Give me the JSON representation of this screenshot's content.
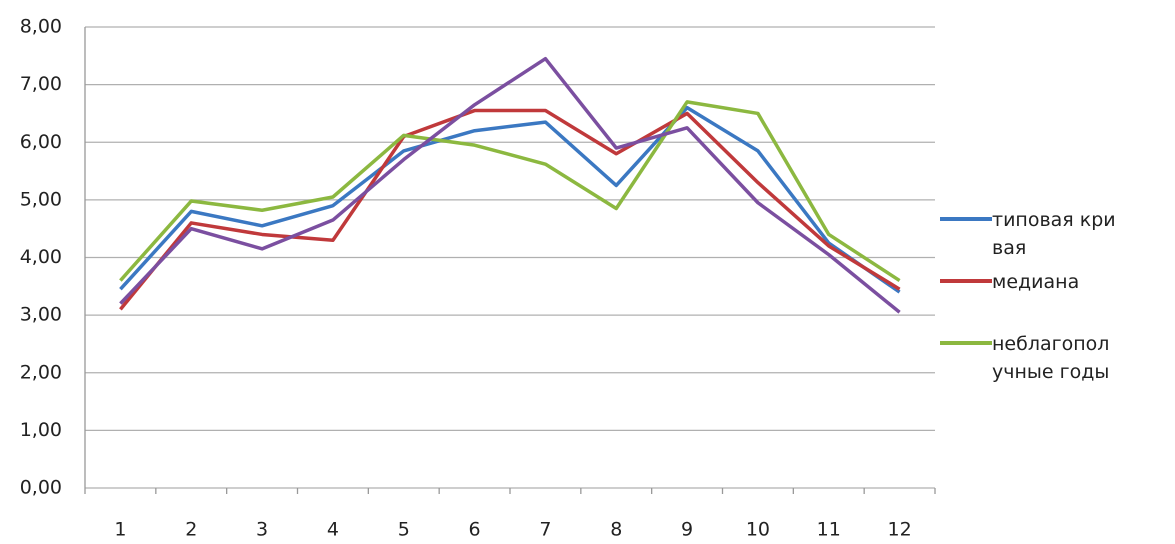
{
  "chart_data": {
    "type": "line",
    "categories": [
      "1",
      "2",
      "3",
      "4",
      "5",
      "6",
      "7",
      "8",
      "9",
      "10",
      "11",
      "12"
    ],
    "series": [
      {
        "name": "типовая кривая",
        "color": "#3b78c2",
        "values": [
          3.45,
          4.8,
          4.55,
          4.9,
          5.85,
          6.2,
          6.35,
          5.25,
          6.6,
          5.85,
          4.25,
          3.4
        ]
      },
      {
        "name": "медиана",
        "color": "#c0393b",
        "values": [
          3.1,
          4.6,
          4.4,
          4.3,
          6.1,
          6.55,
          6.55,
          5.8,
          6.5,
          5.3,
          4.2,
          3.45
        ]
      },
      {
        "name": "неблагополучные годы",
        "color": "#8cb840",
        "values": [
          3.6,
          4.98,
          4.82,
          5.05,
          6.12,
          5.95,
          5.62,
          4.85,
          6.7,
          6.5,
          4.4,
          3.6
        ]
      },
      {
        "color": "#7b4fa0",
        "values": [
          3.2,
          4.5,
          4.15,
          4.65,
          5.7,
          6.65,
          7.45,
          5.9,
          6.25,
          4.95,
          4.05,
          3.05
        ]
      }
    ],
    "ylim": [
      0,
      8
    ],
    "yticks": [
      {
        "value": 0,
        "label": "0,00"
      },
      {
        "value": 1,
        "label": "1,00"
      },
      {
        "value": 2,
        "label": "2,00"
      },
      {
        "value": 3,
        "label": "3,00"
      },
      {
        "value": 4,
        "label": "4,00"
      },
      {
        "value": 5,
        "label": "5,00"
      },
      {
        "value": 6,
        "label": "6,00"
      },
      {
        "value": 7,
        "label": "7,00"
      },
      {
        "value": 8,
        "label": "8,00"
      }
    ],
    "grid": true
  }
}
